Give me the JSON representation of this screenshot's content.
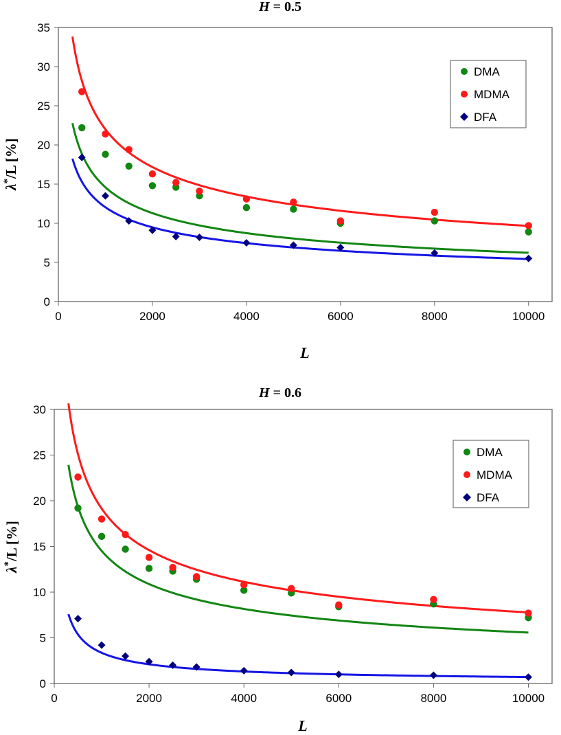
{
  "colors": {
    "DMA": "#138613",
    "MDMA": "#ff1a1a",
    "DFA": "#00007f",
    "fit_DFA": "#1515e6",
    "frame": "#666666"
  },
  "chart_data": [
    {
      "type": "scatter",
      "title_var": "H",
      "title_rest": " = 0.5",
      "xlabel": "L",
      "ylabel_sym": "λ",
      "ylabel_sup": "*",
      "ylabel_rest": "/L [%]",
      "xlim": [
        0,
        10500
      ],
      "ylim": [
        0,
        35
      ],
      "xticks": [
        0,
        2000,
        4000,
        6000,
        8000,
        10000
      ],
      "yticks": [
        0,
        5,
        10,
        15,
        20,
        25,
        30,
        35
      ],
      "legend_position": "top-right",
      "x": [
        500,
        1000,
        1500,
        2000,
        2500,
        3000,
        4000,
        5000,
        6000,
        8000,
        10000
      ],
      "series": [
        {
          "name": "DMA",
          "marker": "circle",
          "values": [
            22.2,
            18.8,
            17.3,
            14.8,
            14.6,
            13.5,
            12.0,
            11.8,
            10.0,
            10.3,
            8.9
          ],
          "fit": {
            "a": 188,
            "b": -0.37
          }
        },
        {
          "name": "MDMA",
          "marker": "circle",
          "values": [
            26.8,
            21.4,
            19.4,
            16.3,
            15.2,
            14.1,
            13.1,
            12.7,
            10.3,
            11.4,
            9.7
          ],
          "fit": {
            "a": 260,
            "b": -0.3575
          }
        },
        {
          "name": "DFA",
          "marker": "diamond",
          "values": [
            18.4,
            13.5,
            10.3,
            9.1,
            8.3,
            8.2,
            7.5,
            7.2,
            6.9,
            6.2,
            5.5
          ],
          "fit": {
            "a": 131,
            "b": -0.3455
          }
        }
      ]
    },
    {
      "type": "scatter",
      "title_var": "H",
      "title_rest": " = 0.6",
      "xlabel": "L",
      "ylabel_sym": "λ",
      "ylabel_sup": "*",
      "ylabel_rest": "/L [%]",
      "xlim": [
        0,
        10500
      ],
      "ylim": [
        0,
        30
      ],
      "xticks": [
        0,
        2000,
        4000,
        6000,
        8000,
        10000
      ],
      "yticks": [
        0,
        5,
        10,
        15,
        20,
        25,
        30
      ],
      "legend_position": "top-right",
      "x": [
        500,
        1000,
        1500,
        2000,
        2500,
        3000,
        4000,
        5000,
        6000,
        8000,
        10000
      ],
      "series": [
        {
          "name": "DMA",
          "marker": "circle",
          "values": [
            19.2,
            16.1,
            14.7,
            12.6,
            12.3,
            11.4,
            10.2,
            9.9,
            8.4,
            8.7,
            7.2
          ],
          "fit": {
            "a": 256,
            "b": -0.4155
          }
        },
        {
          "name": "MDMA",
          "marker": "circle",
          "values": [
            22.6,
            18.0,
            16.3,
            13.8,
            12.7,
            11.7,
            10.8,
            10.4,
            8.6,
            9.2,
            7.7
          ],
          "fit": {
            "a": 285.5,
            "b": -0.3912
          }
        },
        {
          "name": "DFA",
          "marker": "diamond",
          "values": [
            7.1,
            4.2,
            3.0,
            2.4,
            2.0,
            1.8,
            1.4,
            1.2,
            1.0,
            0.9,
            0.7
          ],
          "fit": {
            "a": 361.6,
            "b": -0.6774
          }
        }
      ]
    }
  ]
}
